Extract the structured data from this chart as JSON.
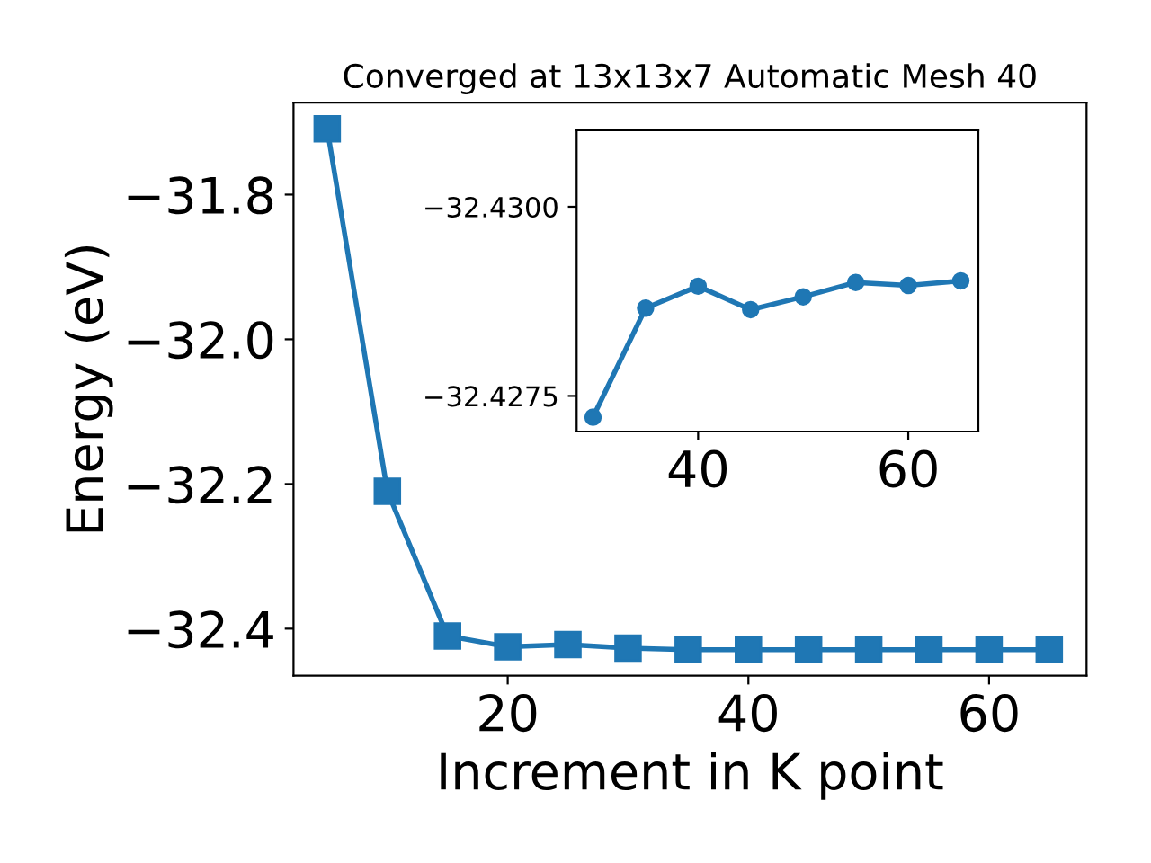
{
  "chart_data": [
    {
      "type": "line",
      "title": "Converged at 13x13x7 Automatic Mesh 40",
      "xlabel": "Increment in K point",
      "ylabel": "Energy (eV)",
      "marker": "square",
      "line_style": "solid",
      "grid": false,
      "x": [
        5,
        10,
        15,
        20,
        25,
        30,
        35,
        40,
        45,
        50,
        55,
        60,
        65
      ],
      "series": [
        {
          "color": "#1f77b4",
          "values": [
            -31.709,
            -32.21,
            -32.41,
            -32.425,
            -32.422,
            -32.427,
            -32.429,
            -32.429,
            -32.429,
            -32.429,
            -32.429,
            -32.429,
            -32.429
          ]
        }
      ],
      "xlim": [
        2.2,
        68.1
      ],
      "ylim": [
        -32.465,
        -31.673
      ],
      "xticks": [
        20,
        40,
        60
      ],
      "yticks": [
        {
          "value": -31.8,
          "label": "−31.8"
        },
        {
          "value": -32.0,
          "label": "−32.0"
        },
        {
          "value": -32.2,
          "label": "−32.2"
        },
        {
          "value": -32.4,
          "label": "−32.4"
        }
      ]
    },
    {
      "type": "line",
      "marker": "circle",
      "line_style": "solid",
      "grid": false,
      "x": [
        30,
        35,
        40,
        45,
        50,
        55,
        60,
        65
      ],
      "series": [
        {
          "color": "#1f77b4",
          "values": [
            -32.42722,
            -32.42866,
            -32.42895,
            -32.42864,
            -32.42881,
            -32.429,
            -32.42896,
            -32.42902
          ]
        }
      ],
      "xlim": [
        28.44,
        66.67
      ],
      "ylim": [
        -32.42703,
        -32.43101
      ],
      "xticks": [
        40,
        60
      ],
      "yticks": [
        {
          "value": -32.43,
          "label": "−32.4300"
        },
        {
          "value": -32.4275,
          "label": "−32.4275"
        }
      ]
    }
  ]
}
